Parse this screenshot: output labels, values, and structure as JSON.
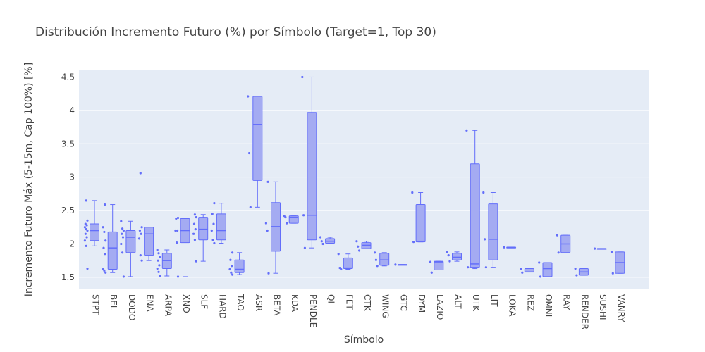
{
  "chart_data": {
    "type": "box",
    "title": "Distribución Incremento Futuro (%) por Símbolo (Target=1, Top 30)",
    "xlabel": "Símbolo",
    "ylabel": "Incremento Futuro Máx (5-15m, Cap 100%) [%]",
    "ylim": [
      1.33,
      4.6
    ],
    "yticks": [
      "1.5",
      "2",
      "2.5",
      "3",
      "3.5",
      "4",
      "4.5"
    ],
    "ytick_values": [
      1.5,
      2,
      2.5,
      3,
      3.5,
      4,
      4.5
    ],
    "grid": true,
    "colors": {
      "plot_bg": "#e5ecf6",
      "box_fill": "#a4abf2",
      "box_line": "#636efa",
      "grid": "#ffffff"
    },
    "categories": [
      "STPT",
      "BEL",
      "DODO",
      "ENA",
      "ARPA",
      "XNO",
      "SLF",
      "HARD",
      "TAO",
      "ASR",
      "BETA",
      "KDA",
      "PENDLE",
      "QI",
      "FET",
      "CTK",
      "WING",
      "GTC",
      "DYM",
      "LAZIO",
      "ALT",
      "UTK",
      "LIT",
      "LOKA",
      "REZ",
      "OMNI",
      "RAY",
      "RENDER",
      "SUSHI",
      "VANRY"
    ],
    "boxes": [
      {
        "min": 1.97,
        "q1": 2.05,
        "median": 2.2,
        "q3": 2.3,
        "max": 2.65,
        "points": [
          1.63,
          1.97,
          2.05,
          2.1,
          2.15,
          2.2,
          2.22,
          2.25,
          2.28,
          2.3,
          2.35,
          2.65
        ]
      },
      {
        "min": 1.57,
        "q1": 1.62,
        "median": 1.94,
        "q3": 2.18,
        "max": 2.59,
        "points": [
          1.57,
          1.6,
          1.62,
          1.85,
          1.94,
          2.05,
          2.18,
          2.25,
          2.59
        ]
      },
      {
        "min": 1.51,
        "q1": 1.87,
        "median": 2.1,
        "q3": 2.2,
        "max": 2.34,
        "points": [
          1.51,
          1.87,
          2.0,
          2.1,
          2.15,
          2.2,
          2.23,
          2.34
        ]
      },
      {
        "min": 1.75,
        "q1": 1.83,
        "median": 2.15,
        "q3": 2.25,
        "max": 2.25,
        "points": [
          1.75,
          1.83,
          2.08,
          2.15,
          2.2,
          2.25,
          3.06
        ]
      },
      {
        "min": 1.52,
        "q1": 1.63,
        "median": 1.75,
        "q3": 1.86,
        "max": 1.91,
        "points": [
          1.52,
          1.58,
          1.63,
          1.68,
          1.75,
          1.8,
          1.86,
          1.91
        ]
      },
      {
        "min": 1.51,
        "q1": 2.02,
        "median": 2.2,
        "q3": 2.38,
        "max": 2.39,
        "points": [
          1.51,
          2.02,
          2.2,
          2.2,
          2.38,
          2.39
        ]
      },
      {
        "min": 1.74,
        "q1": 2.06,
        "median": 2.22,
        "q3": 2.4,
        "max": 2.44,
        "points": [
          1.74,
          2.06,
          2.15,
          2.22,
          2.3,
          2.4,
          2.44
        ]
      },
      {
        "min": 2.01,
        "q1": 2.06,
        "median": 2.2,
        "q3": 2.45,
        "max": 2.61,
        "points": [
          2.01,
          2.06,
          2.2,
          2.3,
          2.45,
          2.61
        ]
      },
      {
        "min": 1.54,
        "q1": 1.57,
        "median": 1.62,
        "q3": 1.76,
        "max": 1.87,
        "points": [
          1.54,
          1.57,
          1.62,
          1.67,
          1.76,
          1.87
        ]
      },
      {
        "min": 2.55,
        "q1": 2.95,
        "median": 3.79,
        "q3": 4.21,
        "max": 4.21,
        "points": [
          2.55,
          3.36,
          4.21
        ]
      },
      {
        "min": 1.56,
        "q1": 1.89,
        "median": 2.26,
        "q3": 2.62,
        "max": 2.93,
        "points": [
          1.56,
          2.2,
          2.31,
          2.93
        ]
      },
      {
        "min": 2.31,
        "q1": 2.31,
        "median": 2.4,
        "q3": 2.42,
        "max": 2.42,
        "points": [
          2.31,
          2.4,
          2.42
        ]
      },
      {
        "min": 1.94,
        "q1": 2.06,
        "median": 2.43,
        "q3": 3.97,
        "max": 4.5,
        "points": [
          1.94,
          2.43,
          4.5
        ]
      },
      {
        "min": 2.0,
        "q1": 2.01,
        "median": 2.04,
        "q3": 2.08,
        "max": 2.1,
        "points": [
          2.0,
          2.04,
          2.1
        ]
      },
      {
        "min": 1.62,
        "q1": 1.63,
        "median": 1.64,
        "q3": 1.79,
        "max": 1.85,
        "points": [
          1.62,
          1.64,
          1.85
        ]
      },
      {
        "min": 1.93,
        "q1": 1.93,
        "median": 1.98,
        "q3": 2.02,
        "max": 2.04,
        "points": [
          1.9,
          1.96,
          2.04
        ]
      },
      {
        "min": 1.67,
        "q1": 1.68,
        "median": 1.76,
        "q3": 1.86,
        "max": 1.87,
        "points": [
          1.67,
          1.76,
          1.87
        ]
      },
      {
        "min": 1.69,
        "q1": 1.69,
        "median": 1.69,
        "q3": 1.69,
        "max": 1.69,
        "points": [
          1.69
        ]
      },
      {
        "min": 2.03,
        "q1": 2.03,
        "median": 2.04,
        "q3": 2.59,
        "max": 2.77,
        "points": [
          2.03,
          2.77
        ]
      },
      {
        "min": 1.61,
        "q1": 1.61,
        "median": 1.73,
        "q3": 1.74,
        "max": 1.74,
        "points": [
          1.57,
          1.73
        ]
      },
      {
        "min": 1.74,
        "q1": 1.76,
        "median": 1.8,
        "q3": 1.86,
        "max": 1.88,
        "points": [
          1.74,
          1.83,
          1.88
        ]
      },
      {
        "min": 1.63,
        "q1": 1.65,
        "median": 1.7,
        "q3": 3.2,
        "max": 3.7,
        "points": [
          1.65,
          3.7
        ]
      },
      {
        "min": 1.65,
        "q1": 1.76,
        "median": 2.07,
        "q3": 2.6,
        "max": 2.77,
        "points": [
          1.65,
          2.07,
          2.77
        ]
      },
      {
        "min": 1.95,
        "q1": 1.95,
        "median": 1.95,
        "q3": 1.95,
        "max": 1.95,
        "points": [
          1.95
        ]
      },
      {
        "min": 1.58,
        "q1": 1.58,
        "median": 1.58,
        "q3": 1.63,
        "max": 1.63,
        "points": [
          1.57,
          1.63
        ]
      },
      {
        "min": 1.51,
        "q1": 1.51,
        "median": 1.63,
        "q3": 1.72,
        "max": 1.72,
        "points": [
          1.51,
          1.72
        ]
      },
      {
        "min": 1.87,
        "q1": 1.87,
        "median": 2.0,
        "q3": 2.13,
        "max": 2.13,
        "points": [
          1.87,
          2.13
        ]
      },
      {
        "min": 1.53,
        "q1": 1.53,
        "median": 1.58,
        "q3": 1.63,
        "max": 1.63,
        "points": [
          1.53,
          1.63
        ]
      },
      {
        "min": 1.93,
        "q1": 1.93,
        "median": 1.93,
        "q3": 1.93,
        "max": 1.93,
        "points": [
          1.93
        ]
      },
      {
        "min": 1.56,
        "q1": 1.56,
        "median": 1.72,
        "q3": 1.88,
        "max": 1.88,
        "points": [
          1.56,
          1.88
        ]
      }
    ]
  }
}
